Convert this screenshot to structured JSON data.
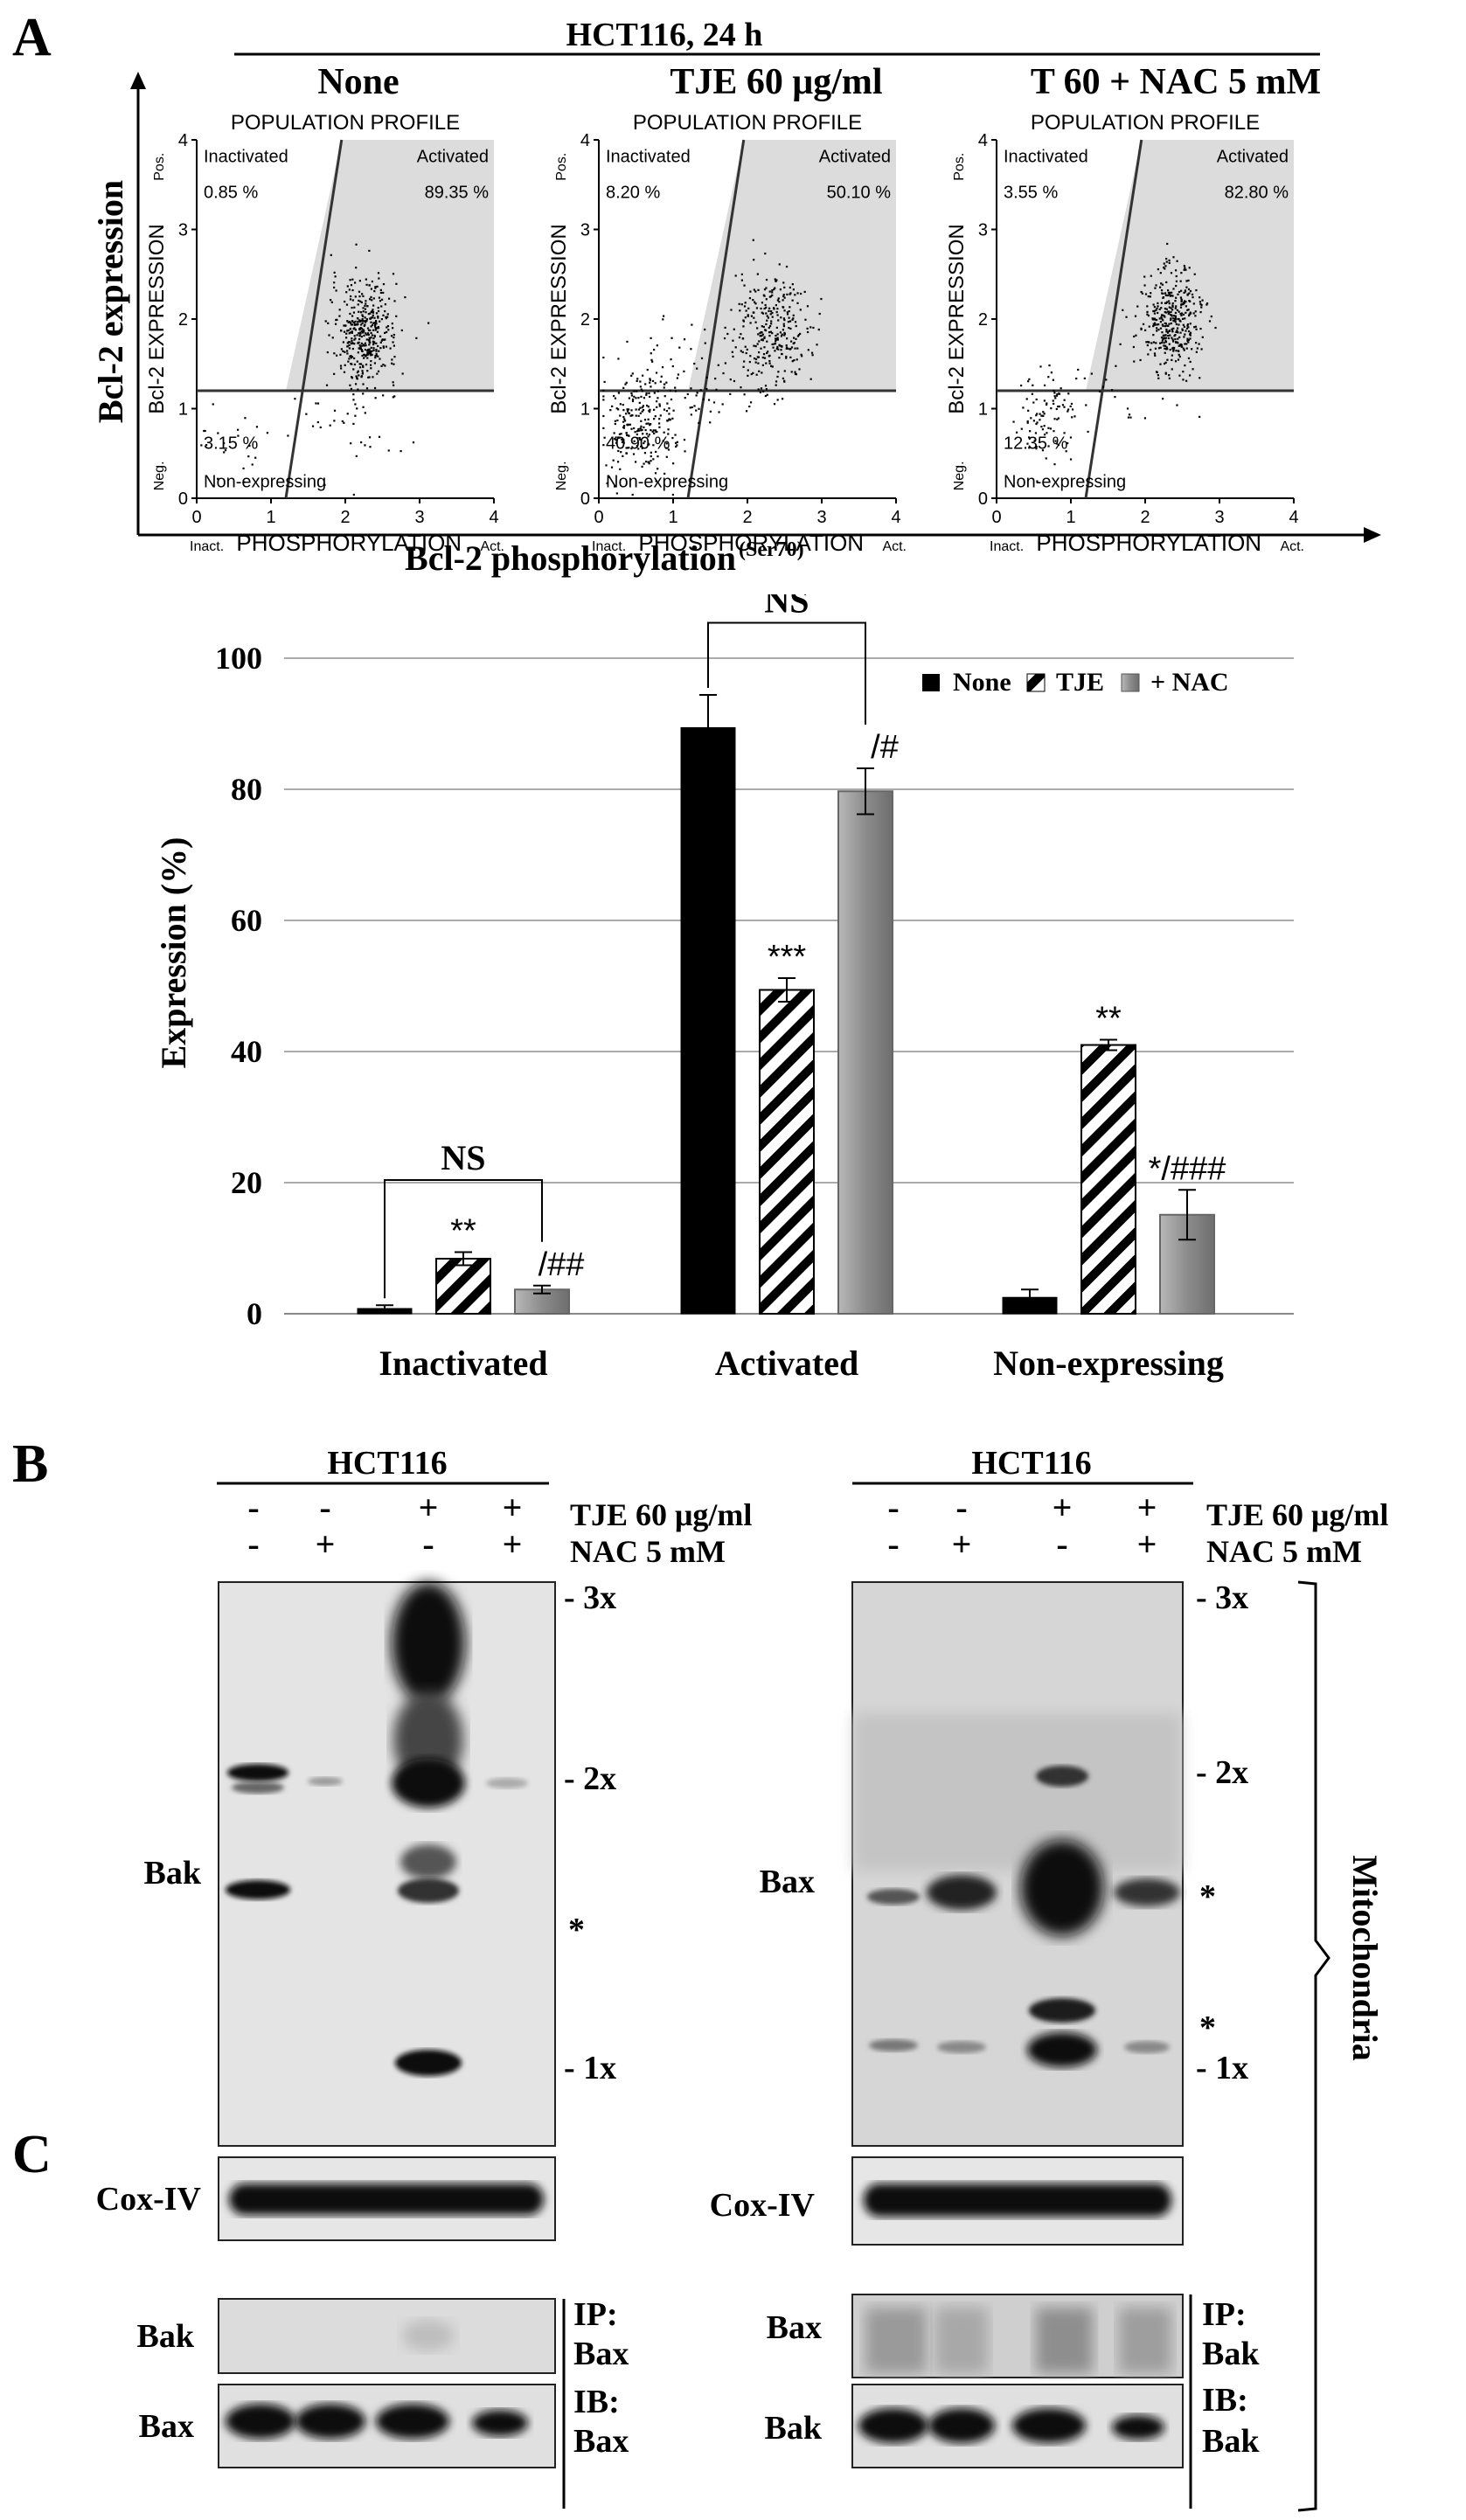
{
  "panel_labels": {
    "a": "A",
    "b": "B",
    "c": "C"
  },
  "flow": {
    "header": "HCT116, 24 h",
    "y_axis_label": "Bcl-2 expression",
    "x_axis_label": "Bcl-2 phosphorylation",
    "x_axis_sup": "(Ser70)",
    "plots": [
      {
        "condition": "None",
        "title": "POPULATION PROFILE",
        "ylabel": "Bcl-2 EXPRESSION",
        "xlabel": "PHOSPHORYLATION",
        "y_pos": "Pos.",
        "y_neg": "Neg.",
        "x_inact": "Inact.",
        "x_act": "Act.",
        "q_inactivated": "Inactivated",
        "v_inactivated": "0.85 %",
        "q_activated": "Activated",
        "v_activated": "89.35 %",
        "q_nonexp": "Non-expressing",
        "v_nonexp": "3.15 %"
      },
      {
        "condition": "TJE 60 μg/ml",
        "title": "POPULATION PROFILE",
        "ylabel": "Bcl-2 EXPRESSION",
        "xlabel": "PHOSPHORYLATION",
        "y_pos": "Pos.",
        "y_neg": "Neg.",
        "x_inact": "Inact.",
        "x_act": "Act.",
        "q_inactivated": "Inactivated",
        "v_inactivated": "8.20 %",
        "q_activated": "Activated",
        "v_activated": "50.10 %",
        "q_nonexp": "Non-expressing",
        "v_nonexp": "40.90 %"
      },
      {
        "condition": "T 60 + NAC 5 mM",
        "title": "POPULATION PROFILE",
        "ylabel": "Bcl-2 EXPRESSION",
        "xlabel": "PHOSPHORYLATION",
        "y_pos": "Pos.",
        "y_neg": "Neg.",
        "x_inact": "Inact.",
        "x_act": "Act.",
        "q_inactivated": "Inactivated",
        "v_inactivated": "3.55 %",
        "q_activated": "Activated",
        "v_activated": "82.80 %",
        "q_nonexp": "Non-expressing",
        "v_nonexp": "12.35 %"
      }
    ],
    "ticks": [
      "0",
      "1",
      "2",
      "3",
      "4"
    ]
  },
  "chart_data": {
    "type": "bar",
    "ylabel": "Expression (%)",
    "ylim": [
      0,
      100
    ],
    "yticks": [
      0,
      20,
      40,
      60,
      80,
      100
    ],
    "grid": true,
    "legend_placement": "top-right",
    "categories": [
      "Inactivated",
      "Activated",
      "Non-expressing"
    ],
    "series": [
      {
        "name": "None",
        "values": [
          0.8,
          89.4,
          2.5
        ],
        "errors": [
          0.5,
          5.0,
          1.2
        ],
        "style": "solid-black",
        "color": "#000000"
      },
      {
        "name": "TJE",
        "values": [
          8.4,
          49.4,
          41.0
        ],
        "errors": [
          1.0,
          1.8,
          0.8
        ],
        "style": "hatched",
        "color": "#000000"
      },
      {
        "name": "+ NAC",
        "values": [
          3.7,
          79.7,
          15.1
        ],
        "errors": [
          0.6,
          3.5,
          3.8
        ],
        "style": "gray-gradient",
        "color": "#8a8a8a"
      }
    ],
    "annotations": [
      {
        "category": 0,
        "series": 1,
        "text": "**"
      },
      {
        "category": 0,
        "series": 2,
        "text": "/##"
      },
      {
        "category": 1,
        "series": 1,
        "text": "***"
      },
      {
        "category": 1,
        "series": 2,
        "text": "/#"
      },
      {
        "category": 2,
        "series": 1,
        "text": "**"
      },
      {
        "category": 2,
        "series": 2,
        "text": "*/###"
      }
    ],
    "brackets": [
      {
        "category": 0,
        "from_series": 0,
        "to_series": 2,
        "text": "NS"
      },
      {
        "category": 1,
        "from_series": 0,
        "to_series": 2,
        "text": "NS"
      }
    ]
  },
  "blots": {
    "left": {
      "cell_line": "HCT116",
      "lanes_tje": [
        "-",
        "-",
        "+",
        "+"
      ],
      "lanes_nac": [
        "-",
        "+",
        "-",
        "+"
      ],
      "band_label": "Bak",
      "loading_label": "Cox-IV",
      "markers": [
        "- 3x",
        "- 2x",
        "*",
        "- 1x"
      ],
      "ip_protein": "Bak",
      "ib_protein": "Bax",
      "ip_label": "IP:",
      "ip_target": "Bax",
      "ib_label": "IB:",
      "ib_target": "Bax"
    },
    "right": {
      "cell_line": "HCT116",
      "lanes_tje": [
        "-",
        "-",
        "+",
        "+"
      ],
      "lanes_nac": [
        "-",
        "+",
        "-",
        "+"
      ],
      "band_label": "Bax",
      "loading_label": "Cox-IV",
      "markers": [
        "- 3x",
        "- 2x",
        "*",
        "*",
        "- 1x"
      ],
      "ip_protein": "Bax",
      "ib_protein": "Bak",
      "ip_label": "IP:",
      "ip_target": "Bak",
      "ib_label": "IB:",
      "ib_target": "Bak"
    },
    "treatment_tje": "TJE 60 μg/ml",
    "treatment_nac": "NAC 5 mM",
    "fraction": "Mitochondria"
  }
}
